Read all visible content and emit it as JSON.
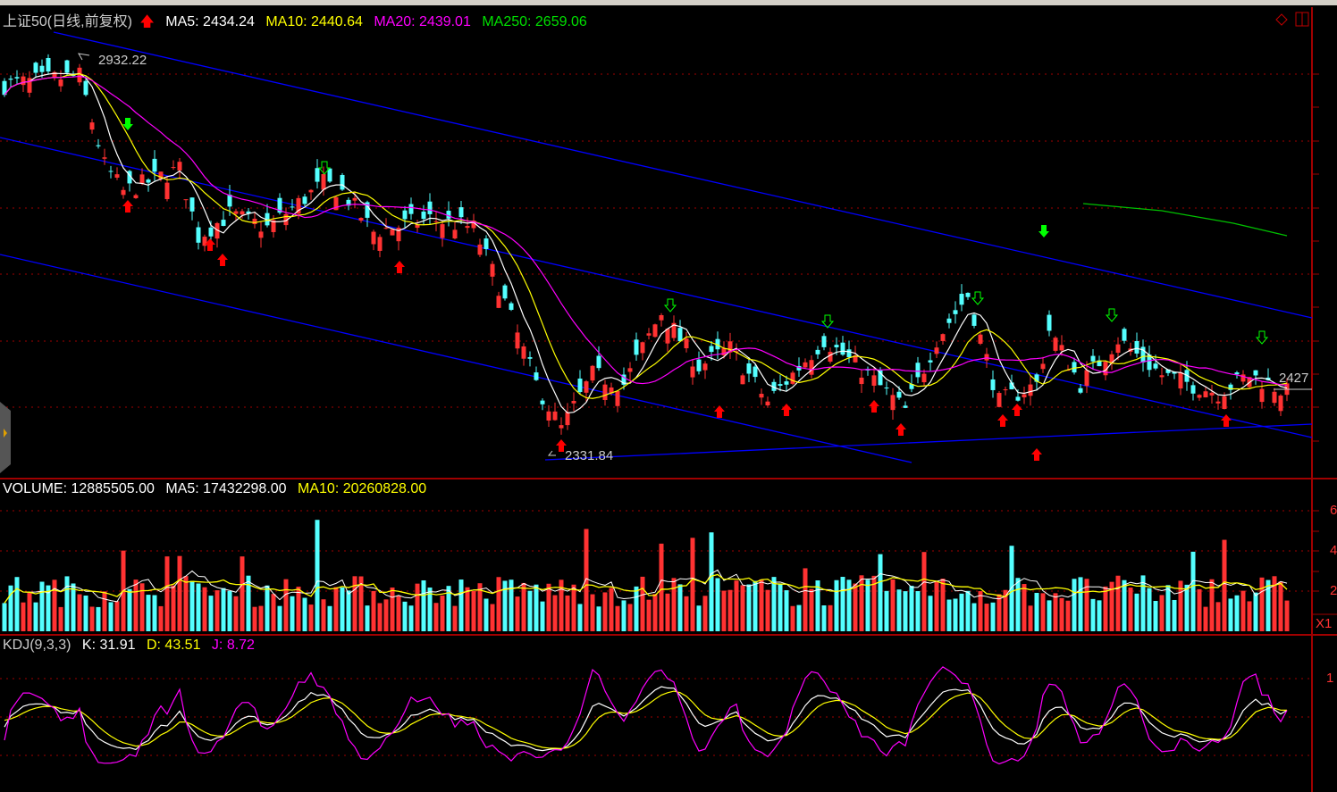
{
  "main": {
    "title": "上证50(日线,前复权)",
    "indicator_arrow": "red-up-arrow",
    "ma5": "MA5: 2434.24",
    "ma10": "MA10: 2440.64",
    "ma20": "MA20: 2439.01",
    "ma250": "MA250: 2659.06",
    "high_label": "2932.22",
    "low_label": "2331.84",
    "last_label": "2427",
    "keypoints": [
      [
        0,
        2894
      ],
      [
        12,
        2908
      ],
      [
        16,
        2772
      ],
      [
        19,
        2732
      ],
      [
        28,
        2766
      ],
      [
        31,
        2664
      ],
      [
        36,
        2698
      ],
      [
        42,
        2677
      ],
      [
        51,
        2745
      ],
      [
        54,
        2732
      ],
      [
        59,
        2671
      ],
      [
        68,
        2691
      ],
      [
        75,
        2677
      ],
      [
        79,
        2589
      ],
      [
        85,
        2440
      ],
      [
        89,
        2372
      ],
      [
        94,
        2454
      ],
      [
        99,
        2440
      ],
      [
        105,
        2549
      ],
      [
        111,
        2467
      ],
      [
        116,
        2494
      ],
      [
        122,
        2413
      ],
      [
        131,
        2508
      ],
      [
        138,
        2454
      ],
      [
        144,
        2400
      ],
      [
        149,
        2508
      ],
      [
        154,
        2575
      ],
      [
        159,
        2413
      ],
      [
        165,
        2440
      ],
      [
        167,
        2522
      ],
      [
        172,
        2440
      ],
      [
        178,
        2508
      ],
      [
        185,
        2454
      ],
      [
        194,
        2427
      ],
      [
        199,
        2454
      ],
      [
        205,
        2427
      ]
    ]
  },
  "volume": {
    "volume": "VOLUME: 12885505.00",
    "ma5": "MA5: 17432298.00",
    "ma10": "MA10: 20260828.00",
    "axis": [
      "6",
      "4",
      "2"
    ],
    "unit": "X1"
  },
  "kdj": {
    "name": "KDJ(9,3,3)",
    "k": "K: 31.91",
    "d": "D: 43.51",
    "j": "J: 8.72",
    "axis": "1"
  },
  "colors": {
    "up": "#ff3232",
    "down": "#54ffff",
    "ma5": "#ffffff",
    "ma10": "#ffff00",
    "ma20": "#ff00ff",
    "ma250": "#00c000",
    "trend": "#0000ff",
    "frame": "#a00000"
  }
}
